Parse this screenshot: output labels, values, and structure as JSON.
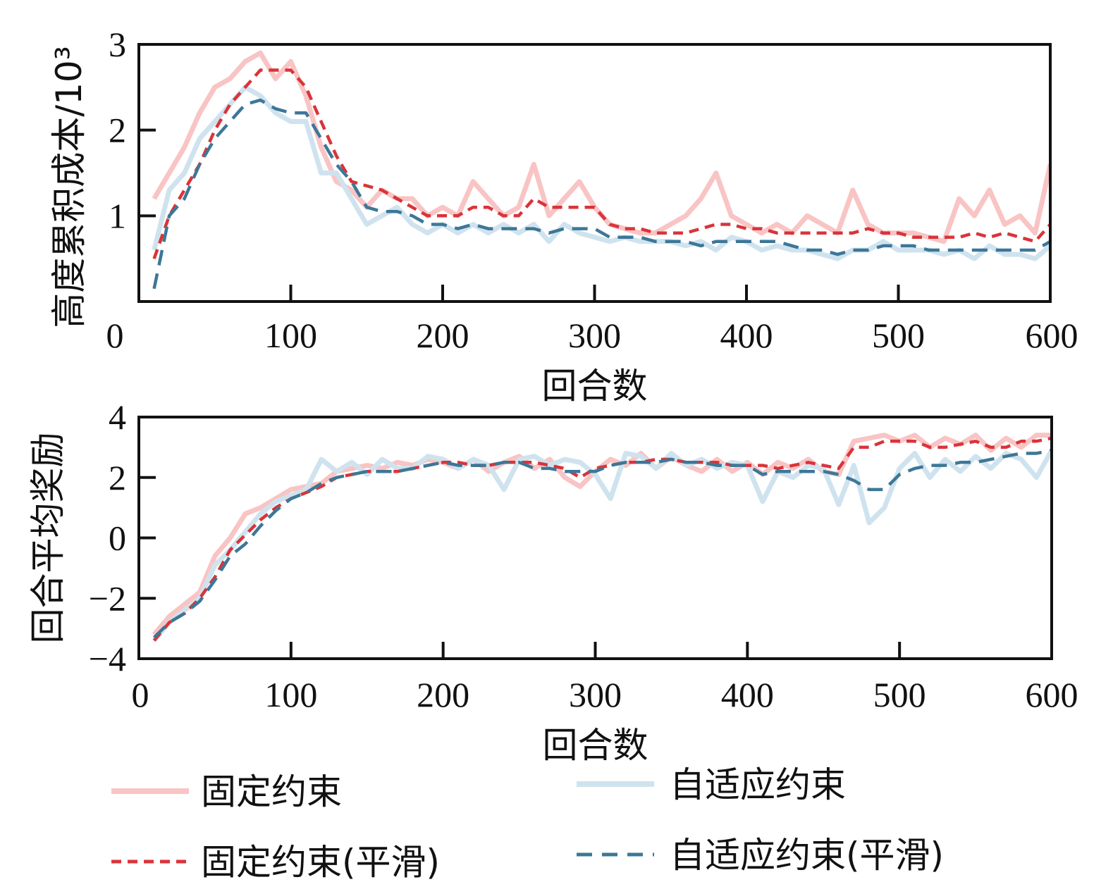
{
  "chart_data": [
    {
      "type": "line",
      "ylabel": "高度累积成本/10³",
      "xlabel": "回合数",
      "xlim": [
        0,
        600
      ],
      "ylim": [
        0,
        3
      ],
      "xticks": [
        "0",
        "100",
        "200",
        "300",
        "400",
        "500",
        "600"
      ],
      "yticks": [
        "1",
        "2",
        "3"
      ],
      "x": [
        10,
        20,
        30,
        40,
        50,
        60,
        70,
        80,
        90,
        100,
        110,
        120,
        130,
        140,
        150,
        160,
        170,
        180,
        190,
        200,
        210,
        220,
        230,
        240,
        250,
        260,
        270,
        280,
        290,
        300,
        310,
        320,
        330,
        340,
        350,
        360,
        370,
        380,
        390,
        400,
        410,
        420,
        430,
        440,
        450,
        460,
        470,
        480,
        490,
        500,
        510,
        520,
        530,
        540,
        550,
        560,
        570,
        580,
        590,
        600
      ],
      "series": [
        {
          "name": "固定约束",
          "style": "raw",
          "color": "#f9c4c4",
          "values": [
            1.2,
            1.5,
            1.8,
            2.2,
            2.5,
            2.6,
            2.8,
            2.9,
            2.6,
            2.8,
            2.4,
            1.8,
            1.4,
            1.3,
            1.1,
            1.3,
            1.2,
            1.2,
            1.0,
            1.1,
            1.0,
            1.4,
            1.2,
            1.0,
            1.1,
            1.6,
            1.0,
            1.2,
            1.4,
            1.1,
            0.9,
            0.85,
            0.8,
            0.8,
            0.9,
            1.0,
            1.2,
            1.5,
            1.0,
            0.9,
            0.8,
            0.9,
            0.8,
            1.0,
            0.9,
            0.8,
            1.3,
            0.9,
            0.8,
            0.8,
            0.8,
            0.75,
            0.7,
            1.2,
            1.0,
            1.3,
            0.9,
            1.0,
            0.8,
            1.6
          ]
        },
        {
          "name": "自适应约束",
          "style": "raw",
          "color": "#cfe3ef",
          "values": [
            0.6,
            1.3,
            1.5,
            1.9,
            2.1,
            2.3,
            2.5,
            2.4,
            2.2,
            2.1,
            2.1,
            1.5,
            1.5,
            1.2,
            0.9,
            1.0,
            1.1,
            0.9,
            0.8,
            0.9,
            0.8,
            0.9,
            0.8,
            0.9,
            0.8,
            0.9,
            0.7,
            0.9,
            0.8,
            0.75,
            0.7,
            0.75,
            0.7,
            0.7,
            0.7,
            0.65,
            0.7,
            0.6,
            0.75,
            0.7,
            0.6,
            0.65,
            0.6,
            0.6,
            0.55,
            0.5,
            0.6,
            0.6,
            0.7,
            0.6,
            0.6,
            0.6,
            0.55,
            0.6,
            0.5,
            0.65,
            0.55,
            0.55,
            0.5,
            0.65
          ]
        },
        {
          "name": "固定约束(平滑)",
          "style": "smooth",
          "color": "#d9343a",
          "values": [
            0.5,
            1.0,
            1.3,
            1.6,
            2.0,
            2.3,
            2.5,
            2.7,
            2.7,
            2.7,
            2.5,
            2.1,
            1.7,
            1.4,
            1.35,
            1.3,
            1.2,
            1.1,
            1.0,
            1.0,
            1.0,
            1.1,
            1.1,
            1.0,
            1.0,
            1.2,
            1.1,
            1.1,
            1.1,
            1.1,
            0.9,
            0.85,
            0.85,
            0.8,
            0.8,
            0.8,
            0.85,
            0.9,
            0.9,
            0.85,
            0.85,
            0.8,
            0.8,
            0.8,
            0.8,
            0.8,
            0.8,
            0.85,
            0.8,
            0.8,
            0.75,
            0.75,
            0.75,
            0.75,
            0.8,
            0.75,
            0.8,
            0.75,
            0.7,
            0.9
          ]
        },
        {
          "name": "自适应约束(平滑)",
          "style": "smooth",
          "color": "#3d7797",
          "values": [
            0.15,
            1.0,
            1.2,
            1.6,
            1.9,
            2.1,
            2.3,
            2.35,
            2.25,
            2.2,
            2.2,
            1.9,
            1.6,
            1.4,
            1.1,
            1.05,
            1.05,
            1.0,
            0.9,
            0.9,
            0.85,
            0.9,
            0.85,
            0.85,
            0.85,
            0.85,
            0.8,
            0.85,
            0.85,
            0.85,
            0.75,
            0.75,
            0.75,
            0.7,
            0.7,
            0.7,
            0.65,
            0.7,
            0.7,
            0.7,
            0.7,
            0.7,
            0.65,
            0.6,
            0.6,
            0.55,
            0.6,
            0.6,
            0.65,
            0.65,
            0.65,
            0.6,
            0.6,
            0.6,
            0.6,
            0.6,
            0.6,
            0.6,
            0.6,
            0.7
          ]
        }
      ]
    },
    {
      "type": "line",
      "ylabel": "回合平均奖励",
      "xlabel": "回合数",
      "xlim": [
        0,
        600
      ],
      "ylim": [
        -4,
        4
      ],
      "xticks": [
        "0",
        "100",
        "200",
        "300",
        "400",
        "500",
        "600"
      ],
      "yticks": [
        "−4",
        "−2",
        "0",
        "2",
        "4"
      ],
      "x": [
        10,
        20,
        30,
        40,
        50,
        60,
        70,
        80,
        90,
        100,
        110,
        120,
        130,
        140,
        150,
        160,
        170,
        180,
        190,
        200,
        210,
        220,
        230,
        240,
        250,
        260,
        270,
        280,
        290,
        300,
        310,
        320,
        330,
        340,
        350,
        360,
        370,
        380,
        390,
        400,
        410,
        420,
        430,
        440,
        450,
        460,
        470,
        480,
        490,
        500,
        510,
        520,
        530,
        540,
        550,
        560,
        570,
        580,
        590,
        600
      ],
      "series": [
        {
          "name": "固定约束",
          "style": "raw",
          "color": "#f9c4c4",
          "values": [
            -3.2,
            -2.6,
            -2.2,
            -1.8,
            -0.6,
            0.0,
            0.8,
            1.0,
            1.3,
            1.6,
            1.7,
            1.8,
            2.2,
            2.3,
            2.4,
            2.3,
            2.5,
            2.4,
            2.6,
            2.5,
            2.3,
            2.6,
            2.2,
            2.5,
            2.7,
            2.3,
            2.6,
            2.0,
            1.7,
            2.2,
            2.6,
            2.4,
            2.8,
            2.3,
            2.7,
            2.4,
            2.2,
            2.6,
            2.2,
            2.5,
            2.1,
            2.5,
            2.3,
            2.6,
            2.2,
            2.1,
            3.2,
            3.3,
            3.4,
            3.2,
            3.4,
            3.0,
            3.3,
            3.1,
            3.4,
            2.9,
            3.3,
            3.0,
            3.4,
            3.4
          ]
        },
        {
          "name": "自适应约束",
          "style": "raw",
          "color": "#cfe3ef",
          "values": [
            -3.4,
            -2.8,
            -2.4,
            -2.0,
            -0.9,
            -0.4,
            0.2,
            0.8,
            1.2,
            1.4,
            1.6,
            2.6,
            2.2,
            2.5,
            2.1,
            2.6,
            2.3,
            2.3,
            2.7,
            2.6,
            2.3,
            2.6,
            2.4,
            1.6,
            2.6,
            2.7,
            2.4,
            2.6,
            2.5,
            2.1,
            1.3,
            2.8,
            2.7,
            2.3,
            2.8,
            2.4,
            2.6,
            2.3,
            2.5,
            2.4,
            1.2,
            2.2,
            2.0,
            2.4,
            2.3,
            1.1,
            2.4,
            0.5,
            1.0,
            2.3,
            2.8,
            2.0,
            2.6,
            2.2,
            2.7,
            2.3,
            2.8,
            2.6,
            2.0,
            2.9
          ]
        },
        {
          "name": "固定约束(平滑)",
          "style": "smooth",
          "color": "#d9343a",
          "values": [
            -3.4,
            -2.8,
            -2.5,
            -2.0,
            -1.3,
            -0.4,
            0.1,
            0.6,
            1.0,
            1.3,
            1.5,
            1.7,
            2.0,
            2.1,
            2.2,
            2.2,
            2.2,
            2.3,
            2.4,
            2.5,
            2.5,
            2.4,
            2.4,
            2.5,
            2.5,
            2.5,
            2.4,
            2.3,
            2.0,
            2.3,
            2.4,
            2.5,
            2.5,
            2.6,
            2.6,
            2.5,
            2.5,
            2.5,
            2.4,
            2.4,
            2.4,
            2.3,
            2.4,
            2.5,
            2.4,
            2.3,
            3.0,
            3.0,
            3.2,
            3.2,
            3.2,
            3.0,
            3.0,
            3.1,
            3.2,
            3.0,
            3.0,
            3.2,
            3.2,
            3.3
          ]
        },
        {
          "name": "自适应约束(平滑)",
          "style": "smooth",
          "color": "#3d7797",
          "values": [
            -3.3,
            -2.8,
            -2.5,
            -2.1,
            -1.4,
            -0.6,
            -0.2,
            0.4,
            0.9,
            1.3,
            1.5,
            1.8,
            2.0,
            2.1,
            2.2,
            2.2,
            2.2,
            2.3,
            2.4,
            2.5,
            2.4,
            2.4,
            2.4,
            2.5,
            2.5,
            2.3,
            2.3,
            2.2,
            2.2,
            2.2,
            2.4,
            2.5,
            2.5,
            2.5,
            2.6,
            2.5,
            2.5,
            2.4,
            2.4,
            2.4,
            2.1,
            2.2,
            2.2,
            2.2,
            2.2,
            2.1,
            1.9,
            1.6,
            1.6,
            2.1,
            2.3,
            2.4,
            2.4,
            2.5,
            2.5,
            2.6,
            2.7,
            2.8,
            2.8,
            2.9
          ]
        }
      ]
    }
  ],
  "legend": {
    "placement": "bottom",
    "items": [
      "固定约束",
      "自适应约束",
      "固定约束(平滑)",
      "自适应约束(平滑)"
    ]
  }
}
